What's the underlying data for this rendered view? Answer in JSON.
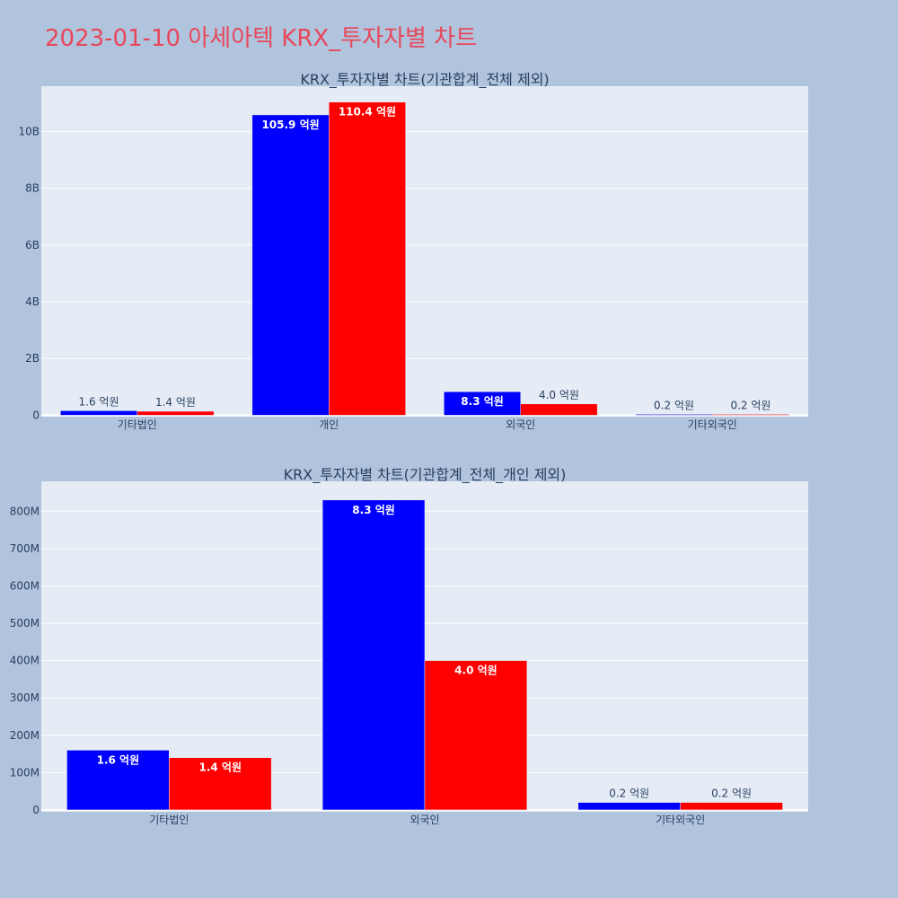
{
  "title": "2023-01-10 아세아텍 KRX_투자자별 차트",
  "colors": {
    "buy": "#0000ff",
    "sell": "#ff0000",
    "plot_bg": "#e5ecf6",
    "page_bg": "#b0c4de"
  },
  "chart_data": [
    {
      "type": "bar",
      "title": "KRX_투자자별 차트(기관합계_전체 제외)",
      "categories": [
        "기타법인",
        "개인",
        "외국인",
        "기타외국인"
      ],
      "series": [
        {
          "values": [
            160000000,
            10590000000,
            830000000,
            20000000
          ],
          "labels": [
            "1.6 억원",
            "105.9 억원",
            "8.3 억원",
            "0.2 억원"
          ]
        },
        {
          "values": [
            140000000,
            11040000000,
            400000000,
            20000000
          ],
          "labels": [
            "1.4 억원",
            "110.4 억원",
            "4.0 억원",
            "0.2 억원"
          ]
        }
      ],
      "ylim": [
        -50000000,
        11600000000
      ],
      "yticks": [
        0,
        2000000000,
        4000000000,
        6000000000,
        8000000000,
        10000000000
      ],
      "ytick_labels": [
        "0",
        "2B",
        "4B",
        "6B",
        "8B",
        "10B"
      ],
      "grid": true
    },
    {
      "type": "bar",
      "title": "KRX_투자자별 차트(기관합계_전체_개인 제외)",
      "categories": [
        "기타법인",
        "외국인",
        "기타외국인"
      ],
      "series": [
        {
          "values": [
            160000000,
            830000000,
            20000000
          ],
          "labels": [
            "1.6 억원",
            "8.3 억원",
            "0.2 억원"
          ]
        },
        {
          "values": [
            140000000,
            400000000,
            20000000
          ],
          "labels": [
            "1.4 억원",
            "4.0 억원",
            "0.2 억원"
          ]
        }
      ],
      "ylim": [
        -5000000,
        880000000
      ],
      "yticks": [
        0,
        100000000,
        200000000,
        300000000,
        400000000,
        500000000,
        600000000,
        700000000,
        800000000
      ],
      "ytick_labels": [
        "0",
        "100M",
        "200M",
        "300M",
        "400M",
        "500M",
        "600M",
        "700M",
        "800M"
      ],
      "grid": true
    }
  ]
}
